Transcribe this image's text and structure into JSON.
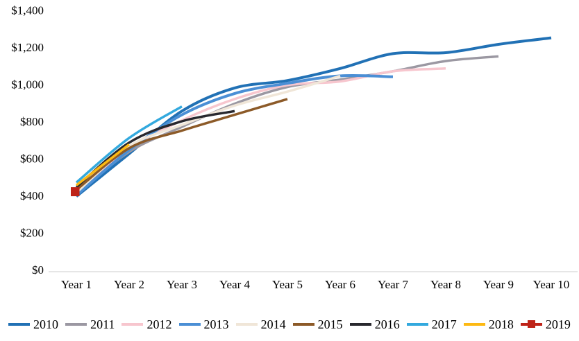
{
  "chart_data": {
    "type": "line",
    "title": "",
    "xlabel": "",
    "ylabel": "",
    "ylim": [
      0,
      1400
    ],
    "grid": false,
    "legend_position": "bottom",
    "axis_line_color": "#d6d6d6",
    "x_categories": [
      "Year 1",
      "Year 2",
      "Year 3",
      "Year 4",
      "Year 5",
      "Year 6",
      "Year 7",
      "Year 8",
      "Year 9",
      "Year 10"
    ],
    "y_ticks": [
      {
        "value": 0,
        "label": "$0"
      },
      {
        "value": 200,
        "label": "$200"
      },
      {
        "value": 400,
        "label": "$400"
      },
      {
        "value": 600,
        "label": "$600"
      },
      {
        "value": 800,
        "label": "$800"
      },
      {
        "value": 1000,
        "label": "$1,000"
      },
      {
        "value": 1200,
        "label": "$1,200"
      },
      {
        "value": 1400,
        "label": "$1,400"
      }
    ],
    "series": [
      {
        "name": "2010",
        "color": "#2171B5",
        "stroke_width": 4,
        "marker": "none",
        "values": [
          395,
          625,
          855,
          980,
          1020,
          1085,
          1165,
          1170,
          1215,
          1250
        ]
      },
      {
        "name": "2011",
        "color": "#9B98A2",
        "stroke_width": 3.5,
        "marker": "none",
        "values": [
          410,
          635,
          770,
          895,
          985,
          1025,
          1070,
          1125,
          1150
        ]
      },
      {
        "name": "2012",
        "color": "#F7C6CE",
        "stroke_width": 3.5,
        "marker": "none",
        "values": [
          405,
          650,
          805,
          920,
          995,
          1015,
          1070,
          1085
        ]
      },
      {
        "name": "2013",
        "color": "#4B8FD5",
        "stroke_width": 4,
        "marker": "none",
        "values": [
          400,
          645,
          835,
          950,
          1005,
          1045,
          1040
        ]
      },
      {
        "name": "2014",
        "color": "#F0E6D8",
        "stroke_width": 3.5,
        "marker": "none",
        "values": [
          415,
          665,
          780,
          885,
          960,
          1045
        ]
      },
      {
        "name": "2015",
        "color": "#8C5A28",
        "stroke_width": 3.5,
        "marker": "none",
        "values": [
          430,
          655,
          750,
          835,
          920
        ]
      },
      {
        "name": "2016",
        "color": "#28282E",
        "stroke_width": 3.5,
        "marker": "none",
        "values": [
          445,
          685,
          800,
          855
        ]
      },
      {
        "name": "2017",
        "color": "#33A9DE",
        "stroke_width": 3.5,
        "marker": "none",
        "values": [
          470,
          710,
          880
        ]
      },
      {
        "name": "2018",
        "color": "#FDB913",
        "stroke_width": 3.5,
        "marker": "none",
        "values": [
          455,
          675
        ]
      },
      {
        "name": "2019",
        "color": "#BE2318",
        "stroke_width": 3.5,
        "marker": "square",
        "values": [
          420
        ]
      }
    ]
  }
}
